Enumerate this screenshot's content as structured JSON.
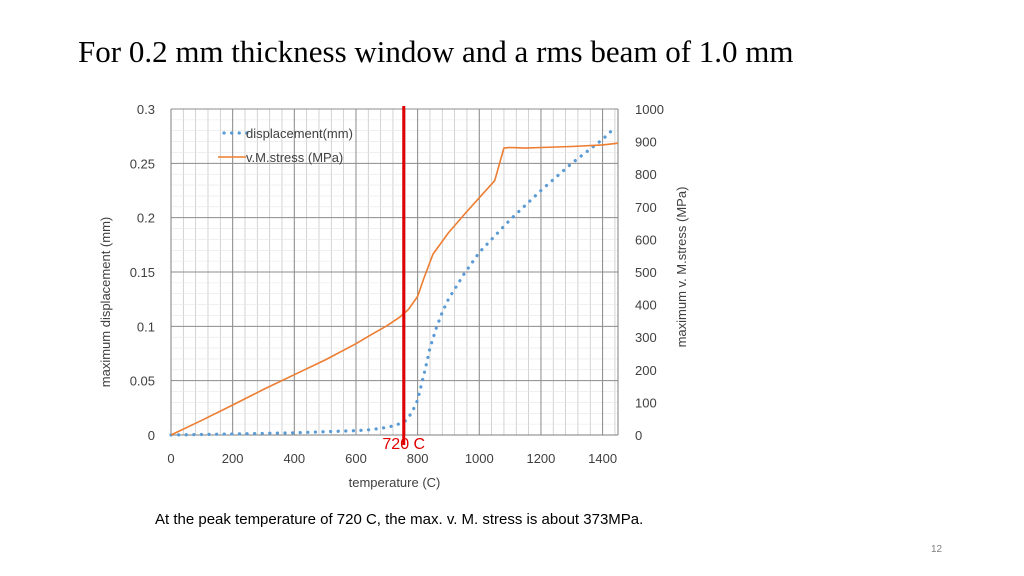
{
  "slide": {
    "title": "For 0.2 mm thickness window and a rms beam of 1.0 mm",
    "caption": "At the peak temperature of 720 C, the max. v. M. stress is about 373MPa.",
    "page_number": "12"
  },
  "chart_data": {
    "type": "line",
    "xlabel": "temperature (C)",
    "ylabel_left": "maximum displacement (mm)",
    "ylabel_right": "maximum v. M.stress (MPa)",
    "xlim": [
      0,
      1450
    ],
    "ylim_left": [
      0,
      0.3
    ],
    "ylim_right": [
      0,
      1000
    ],
    "x_ticks": [
      "0",
      "200",
      "400",
      "600",
      "800",
      "1000",
      "1200",
      "1400"
    ],
    "y_left_ticks": [
      "0",
      "0.05",
      "0.1",
      "0.15",
      "0.2",
      "0.25",
      "0.3"
    ],
    "y_right_ticks": [
      "0",
      "100",
      "200",
      "300",
      "400",
      "500",
      "600",
      "700",
      "800",
      "900",
      "1000"
    ],
    "grid": true,
    "legend_position": "top-left",
    "annotation": {
      "x": 755,
      "label": "720 C",
      "color": "#e00000"
    },
    "series": [
      {
        "name": "displacement(mm)",
        "axis": "left",
        "style": "dotted",
        "color": "#5b9bd5",
        "x": [
          0,
          100,
          200,
          300,
          400,
          500,
          600,
          650,
          700,
          730,
          760,
          780,
          800,
          820,
          840,
          860,
          880,
          900,
          950,
          1000,
          1100,
          1200,
          1300,
          1400,
          1440
        ],
        "y": [
          0,
          0.0005,
          0.001,
          0.0015,
          0.002,
          0.003,
          0.004,
          0.005,
          0.007,
          0.009,
          0.013,
          0.02,
          0.032,
          0.055,
          0.08,
          0.098,
          0.113,
          0.125,
          0.148,
          0.168,
          0.198,
          0.225,
          0.25,
          0.272,
          0.283
        ]
      },
      {
        "name": "v.M.stress (MPa)",
        "axis": "right",
        "style": "solid",
        "color": "#ed7d31",
        "x": [
          0,
          100,
          200,
          300,
          400,
          500,
          600,
          650,
          700,
          740,
          770,
          800,
          820,
          850,
          900,
          950,
          1000,
          1050,
          1080,
          1100,
          1150,
          1200,
          1300,
          1400,
          1450
        ],
        "y": [
          0,
          45,
          92,
          140,
          185,
          230,
          280,
          308,
          335,
          360,
          385,
          425,
          480,
          555,
          620,
          675,
          728,
          780,
          880,
          882,
          880,
          882,
          885,
          890,
          895
        ]
      }
    ]
  }
}
